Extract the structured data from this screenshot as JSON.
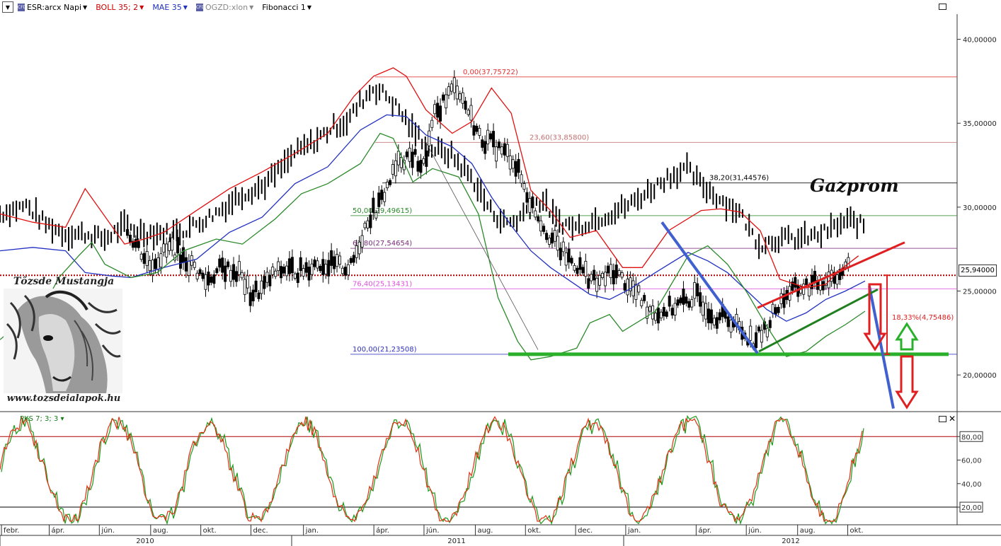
{
  "toolbar": {
    "menu_icon": "dropdown-icon",
    "items": [
      {
        "label": "ESR:arcx Napi",
        "color": "#000000"
      },
      {
        "label": "BOLL 35; 2",
        "color": "#cc0000"
      },
      {
        "label": "MAE 35",
        "color": "#2030c0"
      },
      {
        "label": "OGZD:xlon",
        "color": "#888888"
      },
      {
        "label": "Fibonacci 1",
        "color": "#000000"
      }
    ]
  },
  "annotations": {
    "title": "Gazprom",
    "logo_title": "Tőzsde Mustangja",
    "logo_url": "www.tozsdeialapok.hu",
    "logo_image": "horse-head-drawing",
    "last_price": "25,94000",
    "move_label": "18,33%(4,75486)"
  },
  "chart_data": [
    {
      "type": "line",
      "name": "price panel",
      "y_axis": {
        "ticks": [
          "40,00000",
          "35,00000",
          "30,00000",
          "25,00000",
          "20,00000"
        ],
        "ylim": [
          17.9,
          41.5
        ]
      },
      "fibonacci": [
        {
          "label": "0,00(37,75722)",
          "value": 37.75722,
          "color": "#e03030"
        },
        {
          "label": "23,60(33,85800)",
          "value": 33.858,
          "color": "#c07070"
        },
        {
          "label": "38,20(31,44576)",
          "value": 31.44576,
          "color": "#000000"
        },
        {
          "label": "50,00(29,49615)",
          "value": 29.49615,
          "color": "#2a8a2a"
        },
        {
          "label": "61,80(27,54654)",
          "value": 27.54654,
          "color": "#7a2a7a"
        },
        {
          "label": "76,40(25,13431)",
          "value": 25.13431,
          "color": "#e050e0"
        },
        {
          "label": "100,00(21,23508)",
          "value": 21.23508,
          "color": "#3030c0"
        }
      ],
      "current_price": 25.94,
      "series": [
        {
          "name": "ESR:arcx Napi",
          "color": "#000000",
          "points": [
            [
              0,
              28.6
            ],
            [
              8,
              26.6
            ],
            [
              16,
              27.6
            ],
            [
              24,
              26.4
            ],
            [
              28,
              25.6
            ],
            [
              34,
              26.4
            ],
            [
              40,
              26.1
            ],
            [
              44,
              24.8
            ],
            [
              48,
              25.1
            ],
            [
              52,
              25.9
            ],
            [
              56,
              26.3
            ],
            [
              62,
              26.2
            ],
            [
              68,
              26.7
            ],
            [
              74,
              26.5
            ],
            [
              80,
              26.4
            ],
            [
              86,
              29.3
            ],
            [
              90,
              30.1
            ],
            [
              94,
              31.6
            ],
            [
              98,
              32.9
            ],
            [
              102,
              33.1
            ],
            [
              106,
              32.4
            ],
            [
              110,
              35.4
            ],
            [
              114,
              36.6
            ],
            [
              118,
              37.2
            ],
            [
              121,
              36.1
            ],
            [
              126,
              34.2
            ],
            [
              132,
              33.6
            ],
            [
              138,
              32.9
            ],
            [
              144,
              30.4
            ],
            [
              150,
              28.6
            ],
            [
              156,
              27.2
            ],
            [
              162,
              26.4
            ],
            [
              168,
              25.4
            ],
            [
              174,
              26.2
            ],
            [
              180,
              25.3
            ],
            [
              186,
              24.1
            ],
            [
              190,
              23.7
            ],
            [
              196,
              24.1
            ],
            [
              204,
              24.7
            ],
            [
              210,
              23.6
            ],
            [
              216,
              23.3
            ],
            [
              220,
              22.6
            ],
            [
              224,
              22.1
            ],
            [
              228,
              22.6
            ],
            [
              232,
              23.9
            ],
            [
              236,
              24.9
            ],
            [
              241,
              25.2
            ],
            [
              246,
              25.4
            ],
            [
              252,
              25.9
            ],
            [
              258,
              26.3
            ]
          ]
        },
        {
          "name": "OGZD:xlon",
          "color": "#000000",
          "points": [
            [
              0,
              29.6
            ],
            [
              8,
              30.1
            ],
            [
              14,
              29.0
            ],
            [
              20,
              28.4
            ],
            [
              26,
              28.4
            ],
            [
              32,
              28.1
            ],
            [
              38,
              28.9
            ],
            [
              44,
              28.5
            ],
            [
              50,
              28.4
            ],
            [
              56,
              28.6
            ],
            [
              62,
              29.2
            ],
            [
              68,
              29.9
            ],
            [
              74,
              30.8
            ],
            [
              80,
              31.2
            ],
            [
              86,
              32.3
            ],
            [
              90,
              33.2
            ],
            [
              96,
              33.9
            ],
            [
              102,
              34.8
            ],
            [
              106,
              35.1
            ],
            [
              110,
              36.2
            ],
            [
              114,
              37.1
            ],
            [
              118,
              36.7
            ],
            [
              122,
              35.8
            ],
            [
              126,
              34.6
            ],
            [
              132,
              33.5
            ],
            [
              138,
              33.1
            ],
            [
              144,
              31.8
            ],
            [
              150,
              29.8
            ],
            [
              154,
              29.1
            ],
            [
              158,
              29.2
            ],
            [
              162,
              30.1
            ],
            [
              166,
              30.4
            ],
            [
              170,
              29.2
            ],
            [
              176,
              28.8
            ],
            [
              184,
              29.4
            ],
            [
              192,
              30.1
            ],
            [
              198,
              30.9
            ],
            [
              204,
              31.8
            ],
            [
              210,
              32.3
            ],
            [
              214,
              31.4
            ],
            [
              220,
              30.5
            ],
            [
              226,
              29.7
            ],
            [
              232,
              27.8
            ],
            [
              238,
              28.1
            ],
            [
              244,
              28.1
            ],
            [
              250,
              28.3
            ],
            [
              256,
              28.9
            ],
            [
              260,
              29.2
            ],
            [
              264,
              28.9
            ]
          ]
        },
        {
          "name": "MAE 35",
          "color": "#2030c0",
          "points": [
            [
              0,
              27.4
            ],
            [
              10,
              27.6
            ],
            [
              20,
              27.4
            ],
            [
              26,
              26.1
            ],
            [
              34,
              25.9
            ],
            [
              40,
              25.8
            ],
            [
              50,
              26.4
            ],
            [
              60,
              26.9
            ],
            [
              70,
              28.5
            ],
            [
              80,
              29.4
            ],
            [
              90,
              31.4
            ],
            [
              100,
              32.4
            ],
            [
              110,
              34.6
            ],
            [
              118,
              35.5
            ],
            [
              124,
              35.4
            ],
            [
              130,
              34.3
            ],
            [
              138,
              33.6
            ],
            [
              144,
              32.6
            ],
            [
              150,
              30.6
            ],
            [
              156,
              28.9
            ],
            [
              162,
              27.4
            ],
            [
              168,
              26.4
            ],
            [
              174,
              25.6
            ],
            [
              180,
              24.8
            ],
            [
              186,
              24.5
            ],
            [
              192,
              25.1
            ],
            [
              200,
              26.1
            ],
            [
              210,
              27.3
            ],
            [
              216,
              26.8
            ],
            [
              222,
              26.1
            ],
            [
              228,
              25.0
            ],
            [
              234,
              23.9
            ],
            [
              240,
              23.2
            ],
            [
              246,
              23.7
            ],
            [
              252,
              24.5
            ],
            [
              258,
              25.0
            ],
            [
              264,
              25.6
            ]
          ]
        },
        {
          "name": "BOLL 35; 2 (upper)",
          "color": "#e01010",
          "points": [
            [
              0,
              29.6
            ],
            [
              10,
              29.1
            ],
            [
              20,
              28.8
            ],
            [
              26,
              31.1
            ],
            [
              30,
              30.0
            ],
            [
              38,
              27.8
            ],
            [
              44,
              28.1
            ],
            [
              50,
              28.5
            ],
            [
              60,
              29.8
            ],
            [
              70,
              31.1
            ],
            [
              80,
              32.1
            ],
            [
              90,
              33.2
            ],
            [
              100,
              34.4
            ],
            [
              108,
              36.6
            ],
            [
              114,
              37.8
            ],
            [
              120,
              38.3
            ],
            [
              124,
              37.8
            ],
            [
              130,
              35.8
            ],
            [
              138,
              34.4
            ],
            [
              144,
              35.1
            ],
            [
              150,
              37.1
            ],
            [
              156,
              35.6
            ],
            [
              162,
              31.0
            ],
            [
              168,
              29.8
            ],
            [
              174,
              28.2
            ],
            [
              182,
              28.6
            ],
            [
              190,
              26.4
            ],
            [
              196,
              26.4
            ],
            [
              204,
              28.6
            ],
            [
              214,
              29.8
            ],
            [
              220,
              29.9
            ],
            [
              226,
              29.7
            ],
            [
              232,
              28.6
            ],
            [
              238,
              25.7
            ],
            [
              246,
              25.2
            ],
            [
              252,
              25.4
            ],
            [
              256,
              26.2
            ],
            [
              262,
              27.1
            ]
          ]
        },
        {
          "name": "BOLL 35; 2 (lower)",
          "color": "#2a8a2a",
          "points": [
            [
              0,
              22.1
            ],
            [
              6,
              23.1
            ],
            [
              12,
              23.6
            ],
            [
              18,
              25.8
            ],
            [
              24,
              27.1
            ],
            [
              28,
              27.9
            ],
            [
              32,
              26.6
            ],
            [
              40,
              25.8
            ],
            [
              48,
              26.1
            ],
            [
              56,
              27.4
            ],
            [
              66,
              28.1
            ],
            [
              74,
              27.8
            ],
            [
              84,
              29.3
            ],
            [
              92,
              30.8
            ],
            [
              100,
              31.4
            ],
            [
              110,
              32.6
            ],
            [
              116,
              34.4
            ],
            [
              120,
              34.1
            ],
            [
              126,
              31.5
            ],
            [
              132,
              32.3
            ],
            [
              140,
              31.8
            ],
            [
              146,
              29.6
            ],
            [
              152,
              24.6
            ],
            [
              158,
              22.0
            ],
            [
              162,
              20.9
            ],
            [
              168,
              21.1
            ],
            [
              176,
              21.6
            ],
            [
              180,
              23.1
            ],
            [
              186,
              23.6
            ],
            [
              190,
              22.6
            ],
            [
              200,
              23.8
            ],
            [
              210,
              27.1
            ],
            [
              216,
              27.7
            ],
            [
              222,
              26.6
            ],
            [
              228,
              24.9
            ],
            [
              234,
              22.9
            ],
            [
              240,
              21.1
            ],
            [
              246,
              21.4
            ],
            [
              252,
              22.3
            ],
            [
              258,
              23.0
            ],
            [
              264,
              23.8
            ]
          ]
        }
      ],
      "annotations": [
        {
          "type": "support",
          "value": 21.235,
          "color": "#2ab02a"
        },
        {
          "type": "trendline-down",
          "color": "#4060d0"
        },
        {
          "type": "channel-upper",
          "color": "#e02020"
        },
        {
          "type": "channel-lower",
          "color": "#208020"
        }
      ]
    },
    {
      "type": "line",
      "name": "PKS 7; 3; 3",
      "label": "PKS 7; 3; 3",
      "ylim": [
        5,
        100
      ],
      "y_ticks": [
        "80,00",
        "60,00",
        "40,00",
        "20,00"
      ],
      "levels": [
        80,
        20
      ],
      "series_colors": [
        "#e03010",
        "#1a9a1a"
      ]
    }
  ],
  "x_axis": {
    "months": [
      {
        "label": "febr.",
        "day": 3
      },
      {
        "label": "ápr.",
        "day": 43
      },
      {
        "label": "jún.",
        "day": 85
      },
      {
        "label": "aug.",
        "day": 128
      },
      {
        "label": "okt.",
        "day": 170
      },
      {
        "label": "dec.",
        "day": 212
      },
      {
        "label": "jan.",
        "day": 256
      },
      {
        "label": "ápr.",
        "day": 315
      },
      {
        "label": "jún.",
        "day": 357
      },
      {
        "label": "aug.",
        "day": 400
      },
      {
        "label": "okt.",
        "day": 442
      },
      {
        "label": "dec.",
        "day": 484
      },
      {
        "label": "jan.",
        "day": 526
      },
      {
        "label": "ápr.",
        "day": 585
      },
      {
        "label": "jún.",
        "day": 627
      },
      {
        "label": "aug.",
        "day": 670
      },
      {
        "label": "okt.",
        "day": 712
      }
    ],
    "years": [
      {
        "label": "2010",
        "day": 120
      },
      {
        "label": "2011",
        "day": 400
      },
      {
        "label": "2012",
        "day": 640
      }
    ]
  }
}
